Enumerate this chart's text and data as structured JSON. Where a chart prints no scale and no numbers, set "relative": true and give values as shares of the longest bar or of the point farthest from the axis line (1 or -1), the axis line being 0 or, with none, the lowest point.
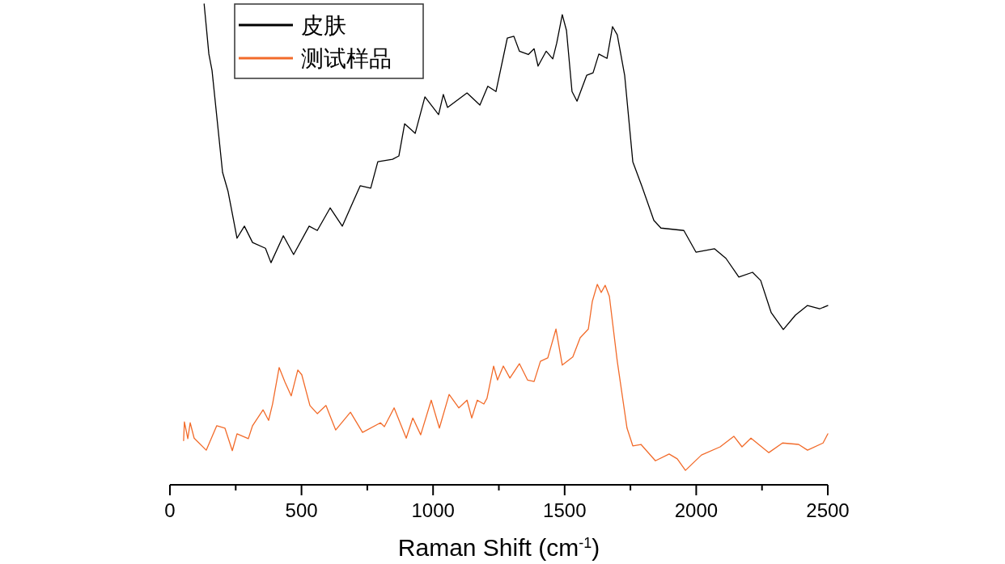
{
  "chart_data": {
    "type": "line",
    "xlabel": "Raman Shift (cm$^{-1}$)",
    "relative": true,
    "legend": "top left",
    "grid": false,
    "xlim": [
      0,
      2500
    ],
    "xticks": [
      0,
      {
        "value": 250,
        "label": null
      },
      500,
      {
        "value": 750,
        "label": null
      },
      1000,
      {
        "value": 1250,
        "label": null
      },
      1500,
      {
        "value": 1750,
        "label": null
      },
      2000,
      {
        "value": 2250,
        "label": null
      },
      2500
    ],
    "series": [
      {
        "name": "皮肤",
        "color": "#000000",
        "x": [
          130,
          148,
          160,
          200,
          221,
          255,
          283,
          314,
          363,
          384,
          431,
          470,
          529,
          560,
          609,
          655,
          723,
          763,
          790,
          846,
          870,
          892,
          932,
          969,
          1021,
          1039,
          1055,
          1129,
          1178,
          1208,
          1239,
          1282,
          1307,
          1328,
          1362,
          1384,
          1399,
          1430,
          1455,
          1470,
          1491,
          1507,
          1528,
          1547,
          1584,
          1608,
          1630,
          1661,
          1682,
          1700,
          1728,
          1759,
          1793,
          1839,
          1866,
          1953,
          1999,
          2069,
          2113,
          2162,
          2214,
          2245,
          2285,
          2331,
          2377,
          2423,
          2469,
          2500
        ],
        "values": [
          1.0,
          0.896,
          0.862,
          0.65,
          0.61,
          0.513,
          0.538,
          0.504,
          0.492,
          0.462,
          0.518,
          0.479,
          0.538,
          0.529,
          0.576,
          0.538,
          0.622,
          0.617,
          0.672,
          0.677,
          0.684,
          0.751,
          0.731,
          0.807,
          0.77,
          0.812,
          0.785,
          0.815,
          0.79,
          0.829,
          0.818,
          0.929,
          0.933,
          0.902,
          0.895,
          0.907,
          0.871,
          0.902,
          0.886,
          0.919,
          0.978,
          0.945,
          0.818,
          0.798,
          0.852,
          0.857,
          0.896,
          0.887,
          0.953,
          0.936,
          0.852,
          0.672,
          0.622,
          0.55,
          0.534,
          0.529,
          0.484,
          0.491,
          0.471,
          0.432,
          0.442,
          0.425,
          0.358,
          0.323,
          0.353,
          0.373,
          0.366,
          0.373
        ]
      },
      {
        "name": "测试样品",
        "color": "#f26b2a",
        "x": [
          52,
          55,
          68,
          77,
          92,
          138,
          178,
          209,
          237,
          255,
          298,
          314,
          354,
          375,
          390,
          415,
          437,
          461,
          486,
          501,
          532,
          560,
          593,
          630,
          686,
          732,
          800,
          815,
          852,
          898,
          923,
          953,
          993,
          1024,
          1061,
          1098,
          1129,
          1147,
          1168,
          1193,
          1205,
          1230,
          1245,
          1267,
          1292,
          1328,
          1359,
          1384,
          1408,
          1436,
          1467,
          1491,
          1531,
          1559,
          1590,
          1605,
          1624,
          1639,
          1654,
          1670,
          1700,
          1737,
          1759,
          1790,
          1845,
          1897,
          1928,
          1959,
          2020,
          2091,
          2143,
          2174,
          2208,
          2276,
          2328,
          2389,
          2423,
          2482,
          2500
        ],
        "values": [
          0.092,
          0.131,
          0.096,
          0.129,
          0.097,
          0.072,
          0.123,
          0.118,
          0.071,
          0.106,
          0.096,
          0.123,
          0.156,
          0.134,
          0.168,
          0.244,
          0.214,
          0.185,
          0.239,
          0.229,
          0.165,
          0.148,
          0.165,
          0.114,
          0.151,
          0.109,
          0.129,
          0.121,
          0.16,
          0.097,
          0.139,
          0.104,
          0.176,
          0.118,
          0.188,
          0.16,
          0.176,
          0.139,
          0.176,
          0.168,
          0.18,
          0.247,
          0.218,
          0.247,
          0.222,
          0.252,
          0.218,
          0.215,
          0.257,
          0.264,
          0.324,
          0.249,
          0.266,
          0.306,
          0.324,
          0.381,
          0.417,
          0.4,
          0.415,
          0.392,
          0.257,
          0.118,
          0.081,
          0.084,
          0.05,
          0.064,
          0.054,
          0.03,
          0.062,
          0.079,
          0.101,
          0.079,
          0.097,
          0.067,
          0.087,
          0.084,
          0.072,
          0.087,
          0.106
        ]
      }
    ]
  }
}
